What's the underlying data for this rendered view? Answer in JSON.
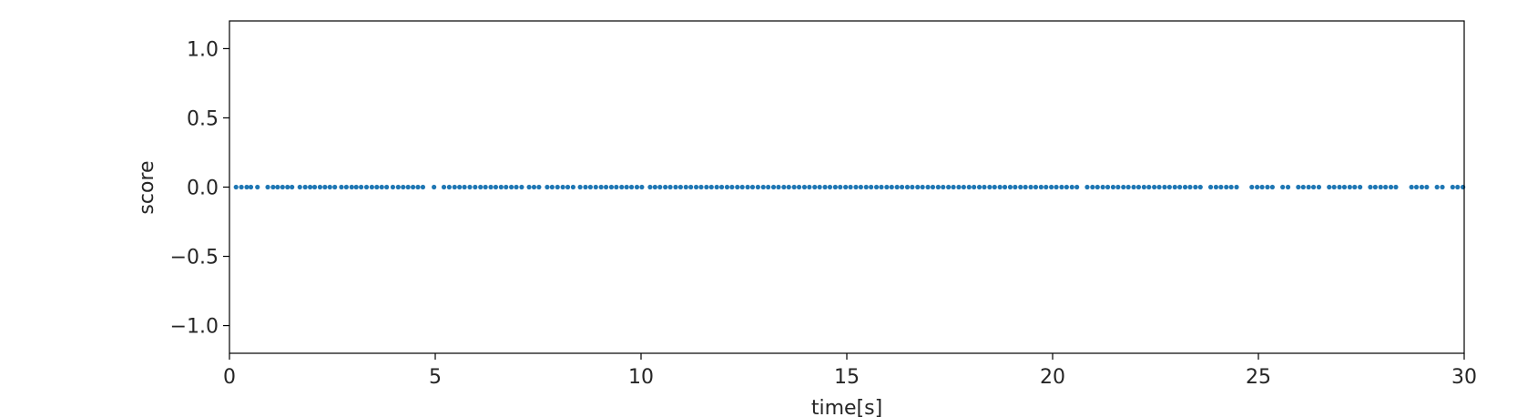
{
  "chart_data": {
    "type": "scatter",
    "title": "",
    "xlabel": "time[s]",
    "ylabel": "score",
    "xlim": [
      0,
      30
    ],
    "ylim": [
      -1.2,
      1.2
    ],
    "x_ticks": [
      0,
      5,
      10,
      15,
      20,
      25,
      30
    ],
    "x_tick_labels": [
      "0",
      "5",
      "10",
      "15",
      "20",
      "25",
      "30"
    ],
    "y_ticks": [
      1.0,
      0.5,
      0.0,
      -0.5,
      -1.0
    ],
    "y_tick_labels": [
      "1.0",
      "0.5",
      "0.0",
      "−0.5",
      "−1.0"
    ],
    "grid": false,
    "color": "#1f77b4",
    "series": [
      {
        "x": [
          0.16,
          0.29,
          0.42,
          0.52,
          0.68,
          0.93,
          1.06,
          1.17,
          1.29,
          1.41,
          1.52,
          1.71,
          1.84,
          1.96,
          2.07,
          2.2,
          2.32,
          2.44,
          2.56,
          2.72,
          2.84,
          2.97,
          3.08,
          3.2,
          3.33,
          3.46,
          3.58,
          3.7,
          3.82,
          3.97,
          4.1,
          4.22,
          4.34,
          4.46,
          4.58,
          4.7,
          4.97,
          5.21,
          5.34,
          5.47,
          5.59,
          5.71,
          5.84,
          5.97,
          6.1,
          6.22,
          6.35,
          6.47,
          6.6,
          6.72,
          6.85,
          6.97,
          7.1,
          7.28,
          7.4,
          7.52,
          7.72,
          7.84,
          7.97,
          8.1,
          8.22,
          8.35,
          8.52,
          8.65,
          8.77,
          8.9,
          9.03,
          9.15,
          9.28,
          9.4,
          9.53,
          9.65,
          9.77,
          9.9,
          10.02,
          10.22,
          10.34,
          10.46,
          10.59,
          10.71,
          10.84,
          10.96,
          11.09,
          11.21,
          11.34,
          11.46,
          11.59,
          11.71,
          11.84,
          11.96,
          12.09,
          12.21,
          12.34,
          12.46,
          12.59,
          12.71,
          12.84,
          12.97,
          13.09,
          13.22,
          13.34,
          13.47,
          13.59,
          13.72,
          13.84,
          13.97,
          14.09,
          14.22,
          14.34,
          14.47,
          14.59,
          14.72,
          14.84,
          14.97,
          15.09,
          15.22,
          15.34,
          15.47,
          15.59,
          15.72,
          15.84,
          15.97,
          16.09,
          16.22,
          16.34,
          16.47,
          16.59,
          16.72,
          16.84,
          16.97,
          17.09,
          17.22,
          17.34,
          17.47,
          17.59,
          17.72,
          17.84,
          17.97,
          18.09,
          18.22,
          18.34,
          18.47,
          18.59,
          18.72,
          18.84,
          18.97,
          19.09,
          19.22,
          19.34,
          19.47,
          19.59,
          19.72,
          19.84,
          19.97,
          20.09,
          20.22,
          20.34,
          20.47,
          20.59,
          20.84,
          20.97,
          21.09,
          21.22,
          21.34,
          21.47,
          21.59,
          21.72,
          21.84,
          21.97,
          22.09,
          22.22,
          22.34,
          22.47,
          22.59,
          22.72,
          22.84,
          22.97,
          23.09,
          23.22,
          23.34,
          23.47,
          23.59,
          23.84,
          23.97,
          24.09,
          24.22,
          24.34,
          24.47,
          24.84,
          24.97,
          25.09,
          25.22,
          25.34,
          25.59,
          25.72,
          25.97,
          26.09,
          26.22,
          26.34,
          26.47,
          26.72,
          26.84,
          26.97,
          27.09,
          27.22,
          27.34,
          27.47,
          27.72,
          27.84,
          27.97,
          28.09,
          28.22,
          28.34,
          28.72,
          28.84,
          28.97,
          29.09,
          29.34,
          29.47,
          29.72,
          29.84,
          29.97
        ],
        "y": "all 0.0"
      }
    ]
  }
}
